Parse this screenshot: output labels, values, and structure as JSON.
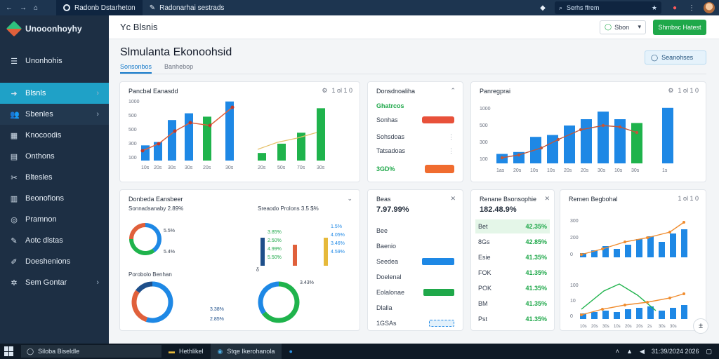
{
  "browser": {
    "tabs": [
      {
        "label": "Radonb Dstarheton"
      },
      {
        "label": "Radonarhai sestrads"
      }
    ],
    "search_text": "Serhs ffrem",
    "nav": [
      "←",
      "→",
      "⌂"
    ]
  },
  "sidebar": {
    "brand": "Unooonhoyhy",
    "items": [
      {
        "label": "Unonhohis",
        "icon": "menu-icon"
      },
      {
        "label": "Blsnls",
        "icon": "circle-arrow-icon"
      },
      {
        "label": "Sbenles",
        "icon": "users-icon"
      },
      {
        "label": "Knocoodis",
        "icon": "calendar-icon"
      },
      {
        "label": "Onthons",
        "icon": "document-icon"
      },
      {
        "label": "Bltesles",
        "icon": "tools-icon"
      },
      {
        "label": "Beonofions",
        "icon": "chart-icon"
      },
      {
        "label": "Pramnon",
        "icon": "target-icon"
      },
      {
        "label": "Aotc dlstas",
        "icon": "pen-icon"
      },
      {
        "label": "Doeshenions",
        "icon": "wrench-icon"
      },
      {
        "label": "Sem Gontar",
        "icon": "gear-icon"
      }
    ]
  },
  "header": {
    "title": "Yc Blsnis",
    "select_label": "Sbon",
    "action_label": "Shmbsc Hatest"
  },
  "page": {
    "title": "Slmulanta Ekonoohsid",
    "tabs": [
      "Sonsonbos",
      "Banhebop"
    ],
    "button_label": "Seanohses"
  },
  "cards": {
    "c1": {
      "title": "Pancbal Eanasdd",
      "tools": "1 ol 1 0",
      "ylabels": [
        "1000",
        "500",
        "500",
        "300",
        "100"
      ],
      "xlabels": [
        "10s",
        "20s",
        "30s",
        "30s",
        "20s",
        "30s",
        "20s",
        "50s",
        "70s",
        "30s"
      ]
    },
    "c2": {
      "title": "Donsdnoaliha",
      "value": "Ghatrcos",
      "rows": [
        {
          "label": "Sonhas",
          "value": ""
        },
        {
          "label": "Sohsdoas",
          "value": ""
        },
        {
          "label": "Tatsadoas",
          "value": ""
        },
        {
          "label": "3GD%",
          "value": ""
        }
      ]
    },
    "c3": {
      "title": "Panregprai",
      "tools": "1 ol 1 0",
      "ylabels": [
        "1000",
        "500",
        "300",
        "100"
      ],
      "xlabels": [
        "1as",
        "20s",
        "10s",
        "10s",
        "20s",
        "20s",
        "30s",
        "10s",
        "30s",
        "1s"
      ]
    },
    "c4": {
      "title": "Donbeda Eansbeer",
      "subtitle_left": "Sonnadsanaby 2.89%",
      "subtitle_right": "Sreaodo Prolons 3.5 $%",
      "donut1_labels": [
        "5.5%",
        "5.4%"
      ],
      "bar_labels": [
        "3.85%",
        "2.50%",
        "4.99%",
        "5.50%"
      ],
      "bar_labels_r": [
        "1.5%",
        "4.05%",
        "3.46%",
        "4.59%"
      ],
      "bottom_title": "Porobolo Benhan",
      "bottom_labels": [
        "3.38%",
        "2.85%"
      ],
      "donut3_label": "3.43%"
    },
    "c5": {
      "title": "Beas",
      "value": "7.97.99%",
      "rows": [
        "Bee",
        "Baenio",
        "Seedea",
        "Doelenal",
        "Eolalonae",
        "Dlalla",
        "1GSAs"
      ]
    },
    "c6": {
      "title": "Renane Bsonsophie",
      "value": "182.48.9%",
      "rows": [
        {
          "label": "Bet",
          "value": "42.35%"
        },
        {
          "label": "8Gs",
          "value": "42.85%"
        },
        {
          "label": "Esie",
          "value": "41.35%"
        },
        {
          "label": "FOK",
          "value": "41.35%"
        },
        {
          "label": "POK",
          "value": "41.35%"
        },
        {
          "label": "BM",
          "value": "41.35%"
        },
        {
          "label": "Pst",
          "value": "41.35%"
        }
      ]
    },
    "c7": {
      "title": "Remen Begbohal",
      "tools": "1 ol 1 0",
      "ylabels": [
        "300",
        "200",
        "0"
      ],
      "ylabels2": [
        "100",
        "10",
        "0"
      ],
      "xlabels": [
        "10s",
        "20s",
        "30s",
        "10s",
        "20s",
        "20s",
        "2s",
        "30s",
        "30s"
      ]
    }
  },
  "taskbar": {
    "search": "Siloba Biseldle",
    "apps": [
      "Hethlikel",
      "Stqe Ikerohanola"
    ],
    "time": "31:39/2024 2026"
  },
  "chart_data": [
    {
      "type": "bar",
      "title": "Pancbal Eanasdd",
      "categories": [
        "10s",
        "20s",
        "30s",
        "30s",
        "20s",
        "30s",
        "20s",
        "50s",
        "70s",
        "30s"
      ],
      "series": [
        {
          "values": [
            200,
            400,
            580,
            600,
            560,
            820,
            100,
            220,
            380,
            680
          ],
          "color": "#1e88e5"
        },
        {
          "values": [
            0,
            0,
            0,
            0,
            0,
            0,
            0,
            0,
            0,
            0
          ],
          "color": "#1fb34c"
        }
      ],
      "line": [
        200,
        380,
        620,
        560,
        650,
        950
      ],
      "ylim": [
        0,
        1000
      ]
    },
    {
      "type": "bar",
      "title": "Panregprai",
      "categories": [
        "1as",
        "20s",
        "10s",
        "10s",
        "20s",
        "20s",
        "30s",
        "10s",
        "30s",
        "1s"
      ],
      "values": [
        150,
        180,
        420,
        450,
        600,
        700,
        820,
        700,
        640,
        880
      ],
      "line": [
        300,
        380,
        450,
        580,
        700,
        770,
        790,
        640
      ],
      "ylim": [
        0,
        1000
      ]
    },
    {
      "type": "line",
      "title": "Remen Begbohal",
      "categories": [
        "10s",
        "20s",
        "30s",
        "10s",
        "20s",
        "20s",
        "2s",
        "30s",
        "30s"
      ],
      "values": [
        40,
        50,
        60,
        80,
        120,
        150,
        200,
        220,
        260
      ],
      "line": [
        60,
        90,
        120,
        150,
        180,
        210,
        240,
        260,
        300
      ],
      "ylim": [
        0,
        300
      ]
    }
  ]
}
